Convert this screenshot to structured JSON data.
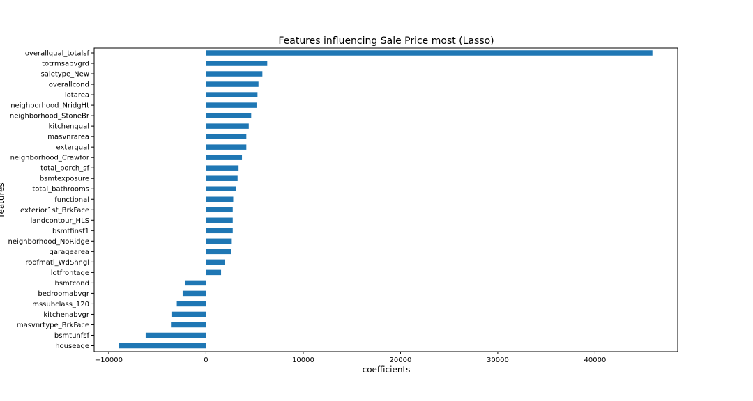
{
  "chart_data": {
    "type": "bar",
    "orientation": "horizontal",
    "title": "Features influencing Sale Price most (Lasso)",
    "xlabel": "coefficients",
    "ylabel": "features",
    "xlim": [
      -11500,
      48500
    ],
    "xticks": [
      -10000,
      0,
      10000,
      20000,
      30000,
      40000
    ],
    "xtick_labels": [
      "−10000",
      "0",
      "10000",
      "20000",
      "30000",
      "40000"
    ],
    "grid": false,
    "bar_color": "#1f77b4",
    "categories": [
      "overallqual_totalsf",
      "totrmsabvgrd",
      "saletype_New",
      "overallcond",
      "lotarea",
      "neighborhood_NridgHt",
      "neighborhood_StoneBr",
      "kitchenqual",
      "masvnrarea",
      "exterqual",
      "neighborhood_Crawfor",
      "total_porch_sf",
      "bsmtexposure",
      "total_bathrooms",
      "functional",
      "exterior1st_BrkFace",
      "landcontour_HLS",
      "bsmtfinsf1",
      "neighborhood_NoRidge",
      "garagearea",
      "roofmatl_WdShngl",
      "lotfrontage",
      "bsmtcond",
      "bedroomabvgr",
      "mssubclass_120",
      "kitchenabvgr",
      "masvnrtype_BrkFace",
      "bsmtunfsf",
      "houseage"
    ],
    "values": [
      45900,
      6300,
      5800,
      5400,
      5300,
      5200,
      4650,
      4400,
      4150,
      4150,
      3700,
      3350,
      3250,
      3100,
      2800,
      2750,
      2750,
      2750,
      2650,
      2600,
      1950,
      1550,
      -2150,
      -2400,
      -3000,
      -3550,
      -3600,
      -6200,
      -8950
    ]
  }
}
